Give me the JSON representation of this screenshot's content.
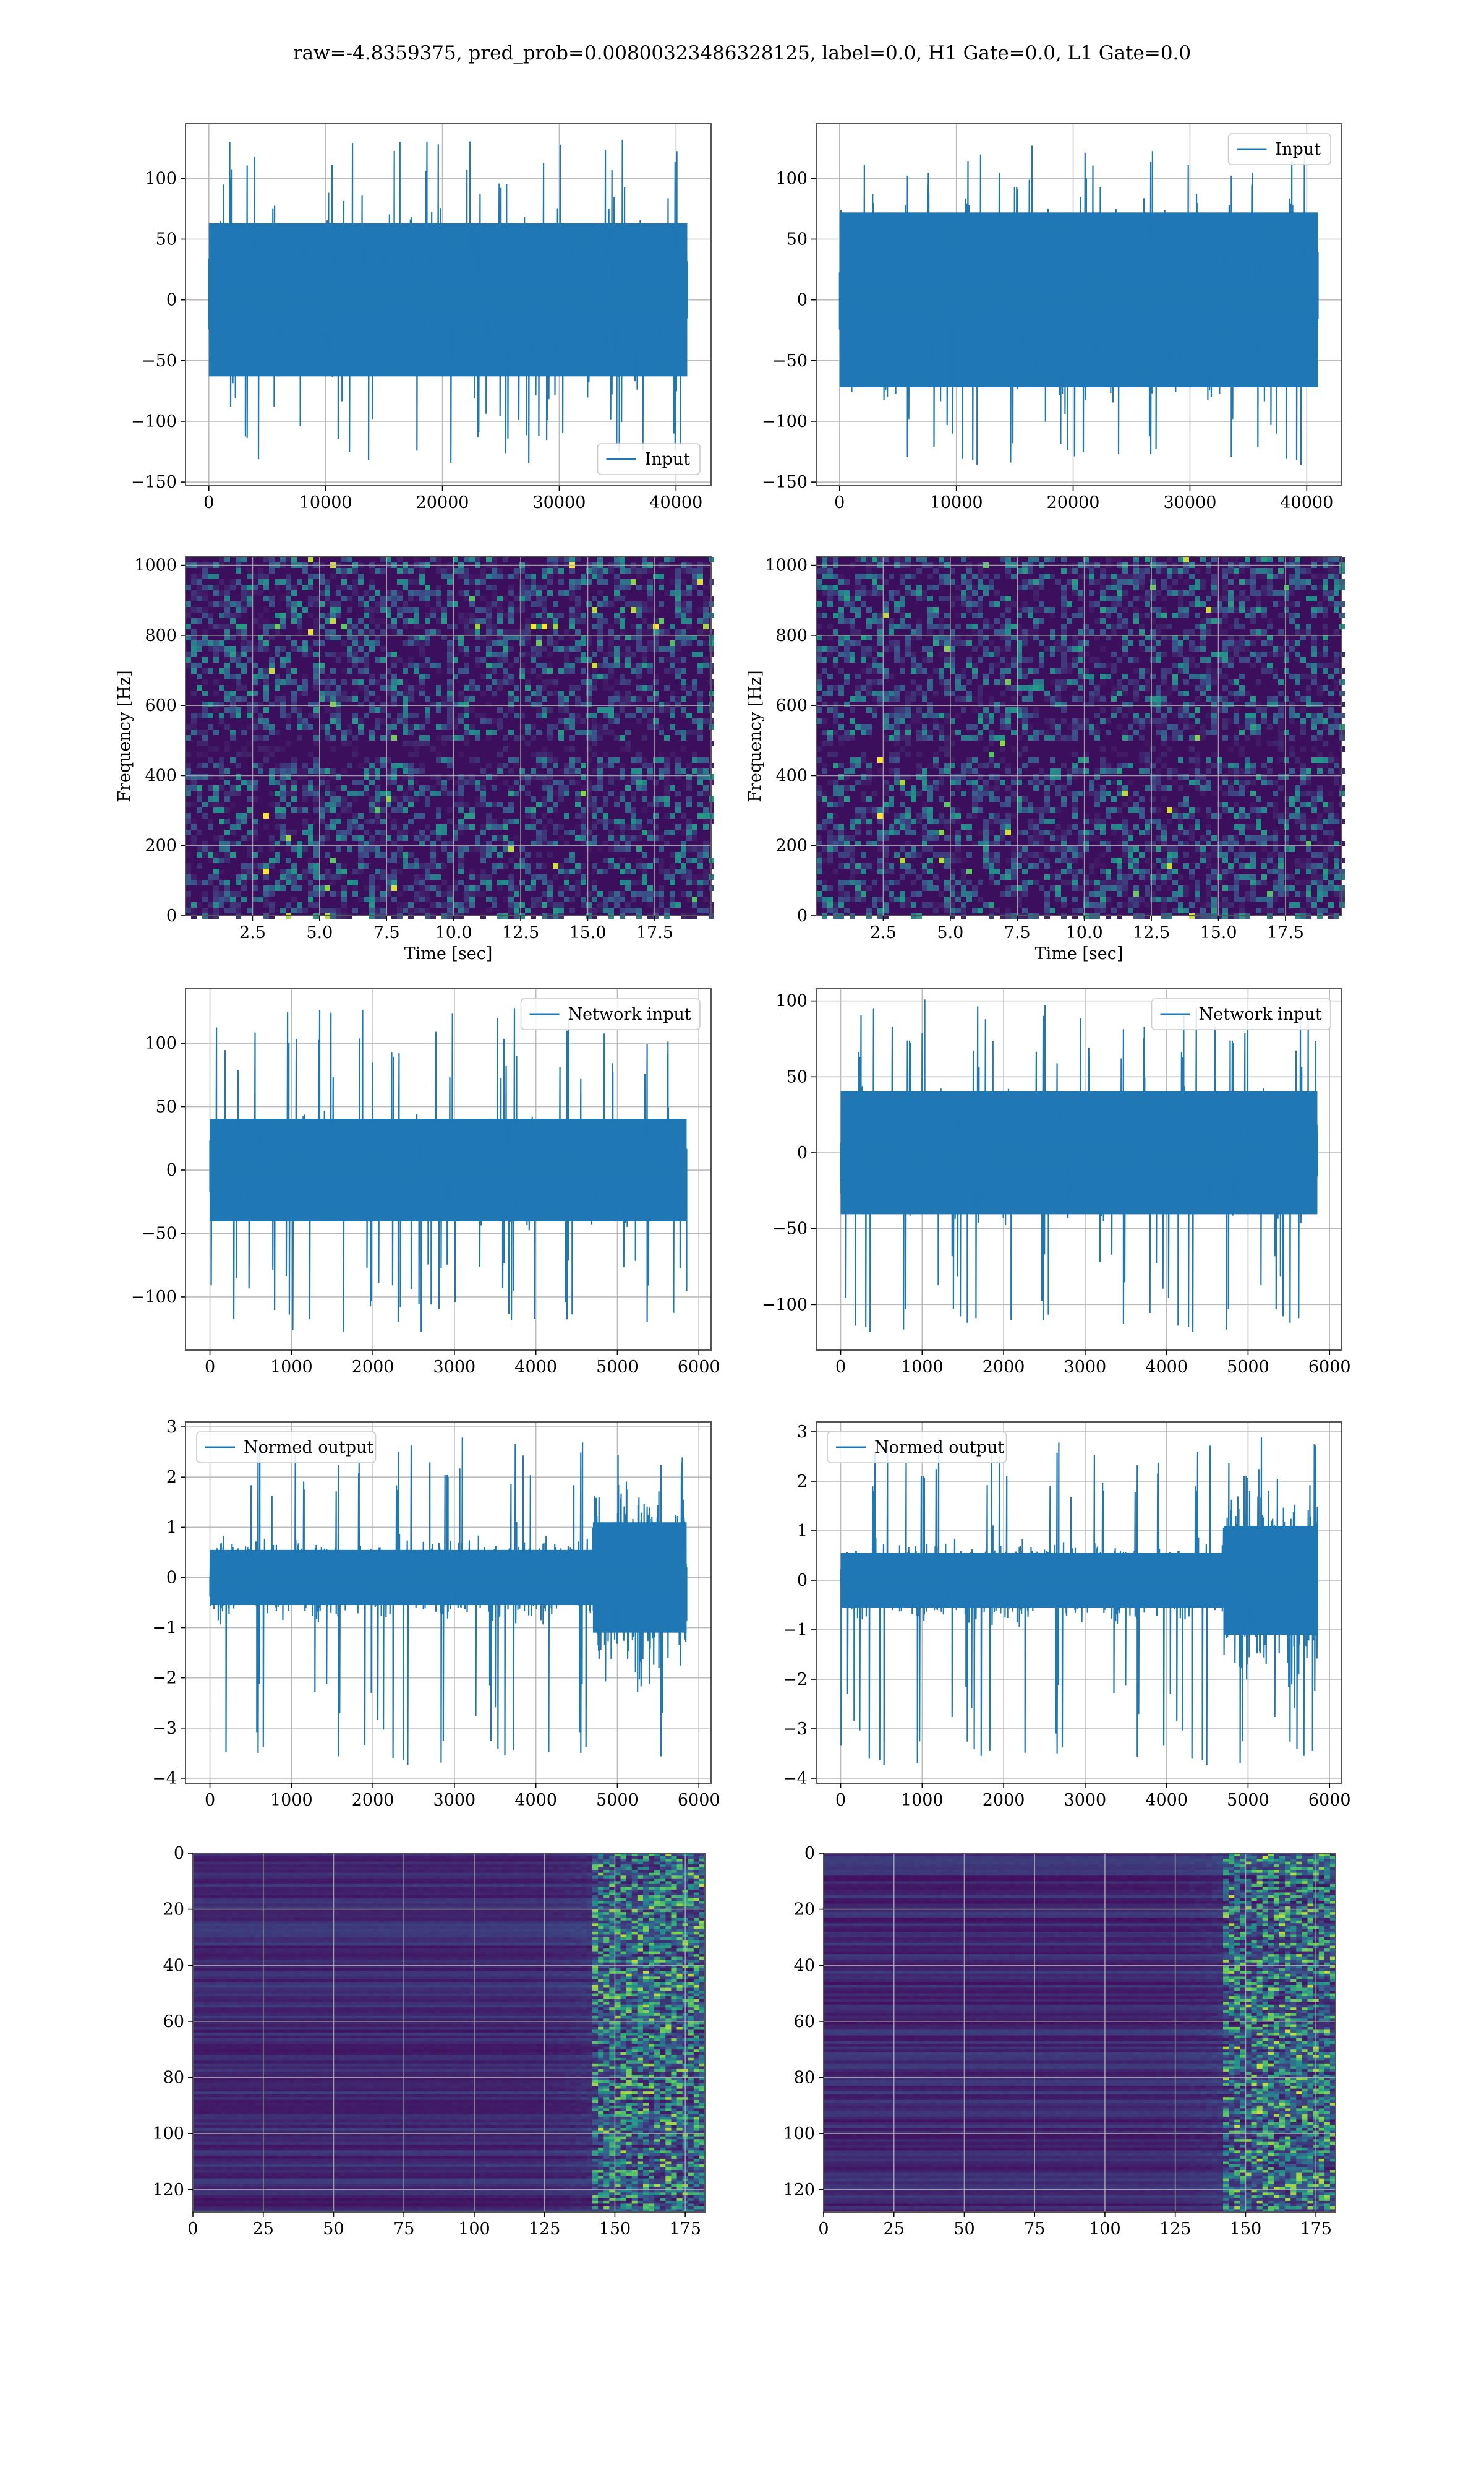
{
  "figure": {
    "title": "raw=-4.8359375, pred_prob=0.00800323486328125, label=0.0, H1 Gate=0.0, L1 Gate=0.0"
  },
  "colors": {
    "line": "#1f77b4",
    "grid": "#b0b0b0",
    "viridis_low": "#440154",
    "viridis_mid": "#21918c",
    "viridis_high": "#fde725"
  },
  "chart_data": [
    {
      "id": "input-left",
      "type": "line",
      "row": 1,
      "col": 1,
      "legend": {
        "label": "Input",
        "position": "lower-right"
      },
      "xlim": [
        -2000,
        43000
      ],
      "ylim": [
        -153,
        145
      ],
      "xticks": [
        0,
        10000,
        20000,
        30000,
        40000
      ],
      "yticks": [
        -150,
        -100,
        -50,
        0,
        50,
        100
      ],
      "series": [
        {
          "x_range": [
            0,
            40960
          ],
          "y_envelope_min": -135,
          "y_envelope_max": 132,
          "y_core": [
            -70,
            70
          ]
        }
      ]
    },
    {
      "id": "input-right",
      "type": "line",
      "row": 1,
      "col": 2,
      "legend": {
        "label": "Input",
        "position": "upper-right"
      },
      "xlim": [
        -2000,
        43000
      ],
      "ylim": [
        -153,
        145
      ],
      "xticks": [
        0,
        10000,
        20000,
        30000,
        40000
      ],
      "yticks": [
        -150,
        -100,
        -50,
        0,
        50,
        100
      ],
      "series": [
        {
          "x_range": [
            0,
            40960
          ],
          "y_envelope_min": -138,
          "y_envelope_max": 132,
          "y_core": [
            -80,
            80
          ]
        }
      ]
    },
    {
      "id": "spectrogram-left",
      "type": "heatmap",
      "row": 2,
      "col": 1,
      "xlabel": "Time [sec]",
      "ylabel": "Frequency [Hz]",
      "xlim": [
        0,
        19.6
      ],
      "ylim": [
        0,
        1024
      ],
      "xticks": [
        2.5,
        5.0,
        7.5,
        10.0,
        12.5,
        15.0,
        17.5
      ],
      "yticks": [
        0,
        200,
        400,
        600,
        800,
        1000
      ],
      "colormap": "viridis",
      "hotspots_hz": [
        830
      ],
      "dark_bands_hz": [
        490
      ]
    },
    {
      "id": "spectrogram-right",
      "type": "heatmap",
      "row": 2,
      "col": 2,
      "xlabel": "Time [sec]",
      "ylabel": "Frequency [Hz]",
      "xlim": [
        0,
        19.6
      ],
      "ylim": [
        0,
        1024
      ],
      "xticks": [
        2.5,
        5.0,
        7.5,
        10.0,
        12.5,
        15.0,
        17.5
      ],
      "yticks": [
        0,
        200,
        400,
        600,
        800,
        1000
      ],
      "colormap": "viridis",
      "dark_bands_hz": [
        490
      ]
    },
    {
      "id": "network-input-left",
      "type": "line",
      "row": 3,
      "col": 1,
      "legend": {
        "label": "Network input",
        "position": "upper-right"
      },
      "xlim": [
        -300,
        6150
      ],
      "ylim": [
        -142,
        143
      ],
      "xticks": [
        0,
        1000,
        2000,
        3000,
        4000,
        5000,
        6000
      ],
      "yticks": [
        -100,
        -50,
        0,
        50,
        100
      ],
      "series": [
        {
          "x_range": [
            0,
            5850
          ],
          "y_envelope_min": -128,
          "y_envelope_max": 128,
          "y_core": [
            -45,
            45
          ]
        }
      ]
    },
    {
      "id": "network-input-right",
      "type": "line",
      "row": 3,
      "col": 2,
      "legend": {
        "label": "Network input",
        "position": "upper-right"
      },
      "xlim": [
        -300,
        6150
      ],
      "ylim": [
        -130,
        108
      ],
      "xticks": [
        0,
        1000,
        2000,
        3000,
        4000,
        5000,
        6000
      ],
      "yticks": [
        -100,
        -50,
        0,
        50,
        100
      ],
      "series": [
        {
          "x_range": [
            0,
            5850
          ],
          "y_envelope_min": -120,
          "y_envelope_max": 105,
          "y_core": [
            -45,
            45
          ]
        }
      ]
    },
    {
      "id": "normed-output-left",
      "type": "line",
      "row": 4,
      "col": 1,
      "legend": {
        "label": "Normed output",
        "position": "upper-left"
      },
      "xlim": [
        -300,
        6150
      ],
      "ylim": [
        -4.1,
        3.1
      ],
      "xticks": [
        0,
        1000,
        2000,
        3000,
        4000,
        5000,
        6000
      ],
      "yticks": [
        -4,
        -3,
        -2,
        -1,
        0,
        1,
        2,
        3
      ],
      "series": [
        {
          "x_range": [
            0,
            5850
          ],
          "y_envelope_min": -3.8,
          "y_envelope_max": 2.9,
          "burst_start_x": 4700
        }
      ]
    },
    {
      "id": "normed-output-right",
      "type": "line",
      "row": 4,
      "col": 2,
      "legend": {
        "label": "Normed output",
        "position": "upper-left"
      },
      "xlim": [
        -300,
        6150
      ],
      "ylim": [
        -4.1,
        3.2
      ],
      "xticks": [
        0,
        1000,
        2000,
        3000,
        4000,
        5000,
        6000
      ],
      "yticks": [
        -4,
        -3,
        -2,
        -1,
        0,
        1,
        2,
        3
      ],
      "series": [
        {
          "x_range": [
            0,
            5850
          ],
          "y_envelope_min": -3.8,
          "y_envelope_max": 3.0,
          "burst_start_x": 4700
        }
      ]
    },
    {
      "id": "activation-left",
      "type": "heatmap",
      "row": 5,
      "col": 1,
      "xlim": [
        0,
        182
      ],
      "ylim": [
        128,
        0
      ],
      "xticks": [
        0,
        25,
        50,
        75,
        100,
        125,
        150,
        175
      ],
      "yticks": [
        0,
        20,
        40,
        60,
        80,
        100,
        120
      ],
      "colormap": "viridis",
      "active_from_x": 140
    },
    {
      "id": "activation-right",
      "type": "heatmap",
      "row": 5,
      "col": 2,
      "xlim": [
        0,
        182
      ],
      "ylim": [
        128,
        0
      ],
      "xticks": [
        0,
        25,
        50,
        75,
        100,
        125,
        150,
        175
      ],
      "yticks": [
        0,
        20,
        40,
        60,
        80,
        100,
        120
      ],
      "colormap": "viridis",
      "active_from_x": 140
    }
  ]
}
